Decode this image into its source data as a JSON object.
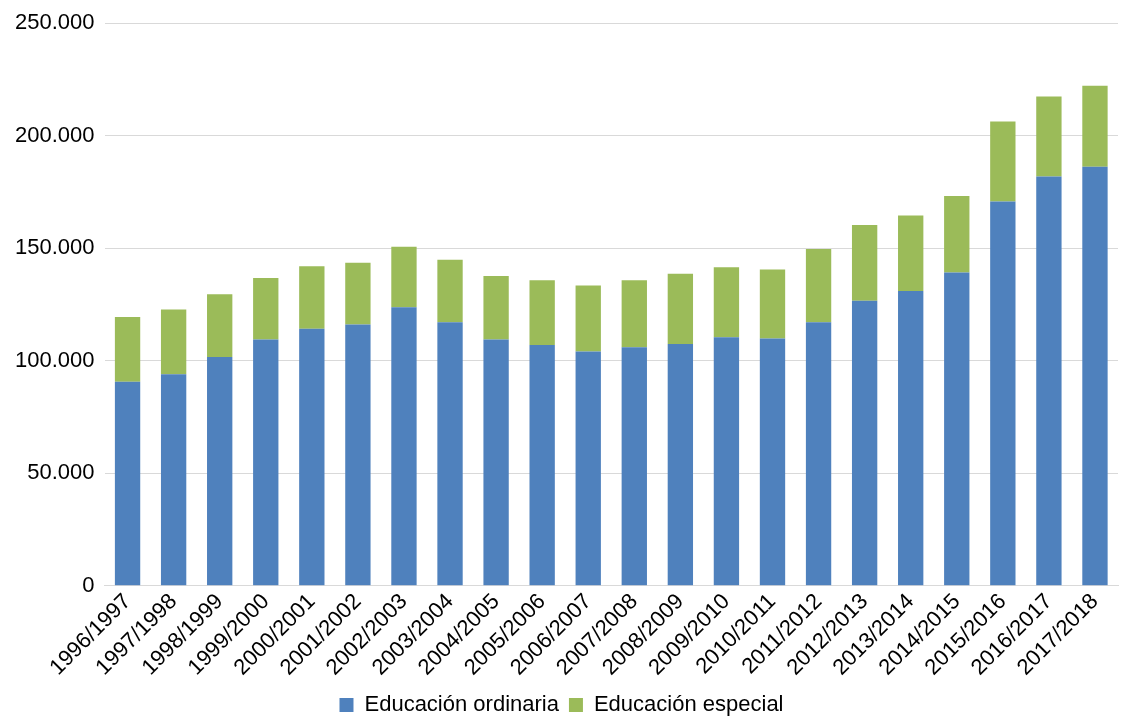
{
  "chart_data": {
    "type": "bar",
    "stacked": true,
    "categories": [
      "1996/1997",
      "1997/1998",
      "1998/1999",
      "1999/2000",
      "2000/2001",
      "2001/2002",
      "2002/2003",
      "2003/2004",
      "2004/2005",
      "2005/2006",
      "2006/2007",
      "2007/2008",
      "2008/2009",
      "2009/2010",
      "2010/2011",
      "2011/2012",
      "2012/2013",
      "2013/2014",
      "2014/2015",
      "2015/2016",
      "2016/2017",
      "2017/2018"
    ],
    "series": [
      {
        "name": "Educación ordinaria",
        "color": "#4f81bd",
        "values": [
          90700,
          94000,
          101700,
          109400,
          114200,
          116100,
          123800,
          117100,
          109400,
          107000,
          104100,
          106000,
          107500,
          110400,
          109900,
          117100,
          126700,
          131000,
          139200,
          170800,
          181900,
          186200
        ]
      },
      {
        "name": "Educación especial",
        "color": "#9bbb59",
        "values": [
          28800,
          28800,
          27900,
          27400,
          27800,
          27400,
          26900,
          27800,
          28300,
          28800,
          29300,
          29800,
          31200,
          31200,
          30700,
          32600,
          33600,
          33600,
          34000,
          35500,
          35500,
          36000
        ]
      }
    ],
    "ylim": [
      0,
      250000
    ],
    "yticks": [
      {
        "value": 0,
        "label": "0"
      },
      {
        "value": 50000,
        "label": "50.000"
      },
      {
        "value": 100000,
        "label": "100.000"
      },
      {
        "value": 150000,
        "label": "150.000"
      },
      {
        "value": 200000,
        "label": "200.000"
      },
      {
        "value": 250000,
        "label": "250.000"
      }
    ],
    "grid": "y",
    "legend": "bottom"
  }
}
